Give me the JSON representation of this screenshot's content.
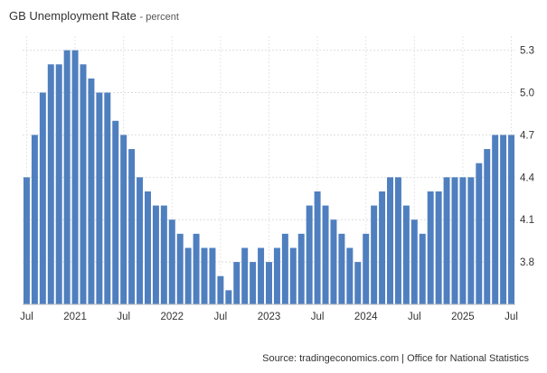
{
  "chart_data": {
    "type": "bar",
    "title": "GB Unemployment Rate",
    "unit": "percent",
    "x": [
      "2020-07",
      "2020-08",
      "2020-09",
      "2020-10",
      "2020-11",
      "2020-12",
      "2021-01",
      "2021-02",
      "2021-03",
      "2021-04",
      "2021-05",
      "2021-06",
      "2021-07",
      "2021-08",
      "2021-09",
      "2021-10",
      "2021-11",
      "2021-12",
      "2022-01",
      "2022-02",
      "2022-03",
      "2022-04",
      "2022-05",
      "2022-06",
      "2022-07",
      "2022-08",
      "2022-09",
      "2022-10",
      "2022-11",
      "2022-12",
      "2023-01",
      "2023-02",
      "2023-03",
      "2023-04",
      "2023-05",
      "2023-06",
      "2023-07",
      "2023-08",
      "2023-09",
      "2023-10",
      "2023-11",
      "2023-12",
      "2024-01",
      "2024-02",
      "2024-03",
      "2024-04",
      "2024-05",
      "2024-06",
      "2024-07",
      "2024-08",
      "2024-09",
      "2024-10",
      "2024-11",
      "2024-12",
      "2025-01",
      "2025-02",
      "2025-03",
      "2025-04",
      "2025-05",
      "2025-06",
      "2025-07"
    ],
    "values": [
      4.4,
      4.7,
      5.0,
      5.2,
      5.2,
      5.3,
      5.3,
      5.2,
      5.1,
      5.0,
      5.0,
      4.8,
      4.7,
      4.6,
      4.4,
      4.3,
      4.2,
      4.2,
      4.1,
      4.0,
      3.9,
      4.0,
      3.9,
      3.9,
      3.7,
      3.6,
      3.8,
      3.9,
      3.8,
      3.9,
      3.8,
      3.9,
      4.0,
      3.9,
      4.0,
      4.2,
      4.3,
      4.2,
      4.1,
      4.0,
      3.9,
      3.8,
      4.0,
      4.2,
      4.3,
      4.4,
      4.4,
      4.2,
      4.1,
      4.0,
      4.3,
      4.3,
      4.4,
      4.4,
      4.4,
      4.4,
      4.5,
      4.6,
      4.7,
      4.7,
      4.7
    ],
    "x_tick_labels": [
      "Jul",
      "2021",
      "Jul",
      "2022",
      "Jul",
      "2023",
      "Jul",
      "2024",
      "Jul",
      "2025",
      "Jul"
    ],
    "y_tick_labels": [
      "3.8",
      "4.1",
      "4.4",
      "4.7",
      "5.0",
      "5.3"
    ],
    "y_ticks": [
      3.8,
      4.1,
      4.4,
      4.7,
      5.0,
      5.3
    ],
    "ylim": [
      3.5,
      5.4
    ],
    "grid": true,
    "bar_color": "#4f7fbf",
    "source": "Source: tradingeconomics.com | Office for National Statistics"
  }
}
